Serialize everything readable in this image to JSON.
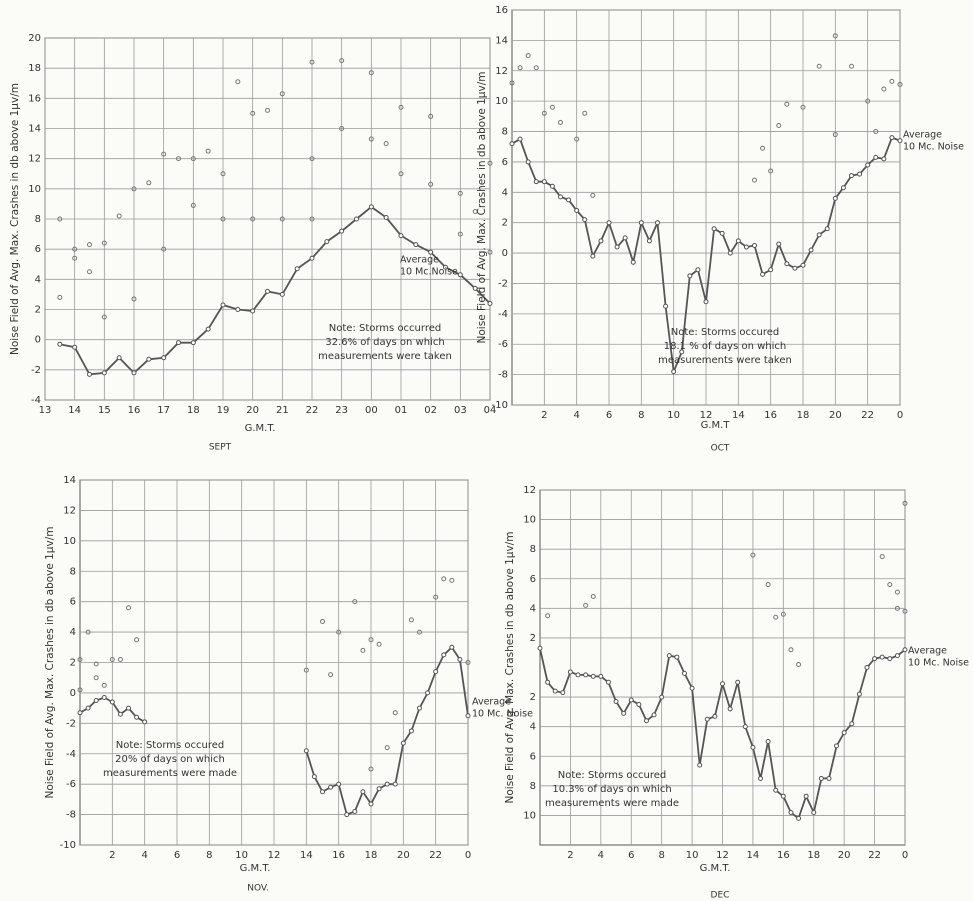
{
  "chart_data": [
    {
      "type": "line",
      "title": "SEPT",
      "xlabel": "G.M.T.",
      "ylabel": "Noise Field of Avg. Max. Crashes in db above 1μv/m",
      "note": [
        "Note: Storms occurred",
        "32.6% of days on which",
        "measurements were taken"
      ],
      "average_label": [
        "Average",
        "10 Mc.Noise"
      ],
      "xlim": [
        13,
        28
      ],
      "xticks": [
        13,
        14,
        15,
        16,
        17,
        18,
        19,
        20,
        21,
        22,
        23,
        {
          "value": 24,
          "label": "00"
        },
        {
          "value": 25,
          "label": "01"
        },
        {
          "value": 26,
          "label": "02"
        },
        {
          "value": 27,
          "label": "03"
        },
        {
          "value": 28,
          "label": "04"
        }
      ],
      "ylim": [
        -4,
        20
      ],
      "yticks": [
        -4,
        -2,
        0,
        2,
        4,
        6,
        8,
        10,
        12,
        14,
        16,
        18,
        20
      ],
      "grid": true,
      "series": [
        {
          "style": "line",
          "color": "#555555",
          "x": [
            13.5,
            14,
            14.5,
            15,
            15.5,
            16,
            16.5,
            17,
            17.5,
            18,
            18.5,
            19,
            19.5,
            20,
            20.5,
            21,
            21.5,
            22,
            22.5,
            23,
            23.5,
            24,
            24.5,
            25,
            25.5,
            26,
            26.5,
            27,
            27.5,
            28
          ],
          "values": [
            -0.3,
            -0.5,
            -2.3,
            -2.2,
            -1.2,
            -2.2,
            -1.3,
            -1.2,
            -0.2,
            -0.2,
            0.7,
            2.3,
            2.0,
            1.9,
            3.2,
            3.0,
            4.7,
            5.4,
            6.5,
            7.2,
            8.0,
            8.8,
            8.1,
            6.9,
            6.3,
            5.8,
            4.8,
            4.3,
            3.4,
            2.4
          ]
        },
        {
          "style": "points",
          "color": "#777777",
          "x": [
            13.5,
            13.5,
            14,
            14,
            14.5,
            14.5,
            15,
            15,
            15.5,
            16,
            16,
            16.5,
            17,
            17,
            17.5,
            18,
            18,
            18.5,
            19,
            19,
            19.5,
            20,
            20,
            20.5,
            21,
            21,
            22,
            22,
            22,
            23,
            23,
            24,
            24,
            24.5,
            25,
            25,
            26,
            26,
            27,
            27,
            27.5,
            28,
            28
          ],
          "values": [
            8,
            2.8,
            6,
            5.4,
            6.3,
            4.5,
            6.4,
            1.5,
            8.2,
            10,
            2.7,
            10.4,
            12.3,
            6,
            12,
            12,
            8.9,
            12.5,
            11,
            8,
            17.1,
            15,
            8,
            15.2,
            16.3,
            8,
            18.4,
            12,
            8,
            18.5,
            14,
            17.7,
            13.3,
            13,
            15.4,
            11,
            14.8,
            10.3,
            9.7,
            7,
            8.5,
            11.7,
            5.8
          ]
        }
      ]
    },
    {
      "type": "line",
      "title": "OCT",
      "xlabel": "G.M.T",
      "ylabel": "Noise Field of Avg. Max. Crashes in db above 1μv/m",
      "note": [
        "Note: Storms occured",
        "18.1 % of days on which",
        "measurements were taken"
      ],
      "average_label": [
        "Average",
        "10 Mc. Noise"
      ],
      "xlim": [
        0,
        24
      ],
      "xticks": [
        2,
        4,
        6,
        8,
        10,
        12,
        14,
        16,
        18,
        20,
        22,
        {
          "value": 24,
          "label": "0"
        }
      ],
      "ylim": [
        -10,
        16
      ],
      "yticks": [
        -10,
        -8,
        -6,
        -4,
        -2,
        0,
        2,
        4,
        6,
        8,
        10,
        12,
        14,
        16
      ],
      "grid": true,
      "series": [
        {
          "style": "line",
          "color": "#555555",
          "x": [
            0,
            0.5,
            1,
            1.5,
            2,
            2.5,
            3,
            3.5,
            4,
            4.5,
            5,
            5.5,
            6,
            6.5,
            7,
            7.5,
            8,
            8.5,
            9,
            9.5,
            10,
            10.5,
            11,
            11.5,
            12,
            12.5,
            13,
            13.5,
            14,
            14.5,
            15,
            15.5,
            16,
            16.5,
            17,
            17.5,
            18,
            18.5,
            19,
            19.5,
            20,
            20.5,
            21,
            21.5,
            22,
            22.5,
            23,
            23.5,
            24
          ],
          "values": [
            7.2,
            7.5,
            6.0,
            4.7,
            4.7,
            4.4,
            3.7,
            3.5,
            2.8,
            2.2,
            -0.2,
            0.8,
            2.0,
            0.4,
            1.0,
            -0.6,
            2.0,
            0.8,
            2.0,
            -3.5,
            -7.8,
            -6.5,
            -1.5,
            -1.1,
            -3.2,
            1.6,
            1.3,
            0,
            0.8,
            0.4,
            0.5,
            -1.4,
            -1.1,
            0.6,
            -0.7,
            -1.0,
            -0.8,
            0.2,
            1.2,
            1.6,
            3.6,
            4.3,
            5.1,
            5.2,
            5.8,
            6.3,
            6.2,
            7.6,
            7.4
          ]
        },
        {
          "style": "points",
          "color": "#777777",
          "x": [
            0,
            0.5,
            1,
            1.5,
            2,
            2.5,
            3,
            4,
            4.5,
            5,
            15,
            15.5,
            16,
            16.5,
            17,
            18,
            19,
            20,
            20,
            21,
            22,
            22.5,
            23,
            23.5,
            24
          ],
          "values": [
            11.2,
            12.2,
            13,
            12.2,
            9.2,
            9.6,
            8.6,
            7.5,
            9.2,
            3.8,
            4.8,
            6.9,
            5.4,
            8.4,
            9.8,
            9.6,
            12.3,
            14.3,
            7.8,
            12.3,
            10,
            8,
            10.8,
            11.3,
            11.1
          ]
        }
      ]
    },
    {
      "type": "line",
      "title": "NOV.",
      "xlabel": "G.M.T.",
      "ylabel": "Noise Field of Avg. Max. Crashes in db above 1μv/m",
      "note": [
        "Note: Storms occured",
        "20% of days on which",
        "measurements were made"
      ],
      "average_label": [
        "Average",
        "10 Mc. Noise"
      ],
      "xlim": [
        0,
        24
      ],
      "xticks": [
        2,
        4,
        6,
        8,
        10,
        12,
        14,
        16,
        18,
        20,
        22,
        {
          "value": 24,
          "label": "0"
        }
      ],
      "ylim": [
        -10,
        14
      ],
      "yticks": [
        -10,
        -8,
        -6,
        -4,
        -2,
        0,
        2,
        4,
        6,
        8,
        10,
        12,
        14
      ],
      "grid": true,
      "series": [
        {
          "style": "line",
          "color": "#555555",
          "x": [
            0,
            0.5,
            1,
            1.5,
            2,
            2.5,
            3,
            3.5,
            4,
            9,
            14,
            14.5,
            15,
            15.5,
            16,
            16.5,
            17,
            17.5,
            18,
            18.5,
            19,
            19.5,
            20,
            20.5,
            21,
            21.5,
            22,
            22.5,
            23,
            23.5,
            24
          ],
          "values": [
            -1.3,
            -1.0,
            -0.5,
            -0.3,
            -0.6,
            -1.4,
            -1.0,
            -1.6,
            -1.9,
            null,
            -3.8,
            -5.5,
            -6.5,
            -6.2,
            -6.0,
            -8.0,
            -7.8,
            -6.5,
            -7.3,
            -6.3,
            -6.0,
            -6.0,
            -3.3,
            -2.5,
            -1.0,
            0,
            1.4,
            2.5,
            3.0,
            2.2,
            -1.5
          ]
        },
        {
          "style": "points",
          "color": "#777777",
          "x": [
            0,
            0,
            0.5,
            1,
            1,
            1.5,
            2,
            2.5,
            3,
            3.5,
            14,
            15,
            15.5,
            16,
            17,
            17.5,
            18,
            18,
            18.5,
            19,
            19.5,
            20.5,
            21,
            22,
            22.5,
            23,
            24
          ],
          "values": [
            0.2,
            2.2,
            4,
            1.9,
            1,
            0.5,
            2.2,
            2.2,
            5.6,
            3.5,
            1.5,
            4.7,
            1.2,
            4,
            6,
            2.8,
            3.5,
            -5,
            3.2,
            -3.6,
            -1.3,
            4.8,
            4,
            6.3,
            7.5,
            7.4,
            2
          ]
        }
      ]
    },
    {
      "type": "line",
      "title": "DEC",
      "xlabel": "G.M.T.",
      "ylabel": "Noise Field of Avg. Max. Crashes in db above 1μv/m",
      "note": [
        "Note: Storms occured",
        "10.3% of days on which",
        "measurements were made"
      ],
      "average_label": [
        "Average",
        "10 Mc. Noise"
      ],
      "xlim": [
        0,
        24
      ],
      "xticks": [
        2,
        4,
        6,
        8,
        10,
        12,
        14,
        16,
        18,
        20,
        22,
        {
          "value": 24,
          "label": "0"
        }
      ],
      "ylim": [
        -12,
        12
      ],
      "yticks": [
        {
          "value": -10,
          "label": "10"
        },
        {
          "value": -8,
          "label": "8"
        },
        {
          "value": -6,
          "label": "6"
        },
        {
          "value": -4,
          "label": "4"
        },
        {
          "value": -2,
          "label": "2"
        },
        2,
        4,
        6,
        8,
        10,
        12
      ],
      "grid": true,
      "series": [
        {
          "style": "line",
          "color": "#555555",
          "x": [
            0,
            0.5,
            1,
            1.5,
            2,
            2.5,
            3,
            3.5,
            4,
            4.5,
            5,
            5.5,
            6,
            6.5,
            7,
            7.5,
            8,
            8.5,
            9,
            9.5,
            10,
            10.5,
            11,
            11.5,
            12,
            12.5,
            13,
            13.5,
            14,
            14.5,
            15,
            15.5,
            16,
            16.5,
            17,
            17.5,
            18,
            18.5,
            19,
            19.5,
            20,
            20.5,
            21,
            21.5,
            22,
            22.5,
            23,
            23.5,
            24
          ],
          "values": [
            1.3,
            -1.0,
            -1.6,
            -1.7,
            -0.3,
            -0.5,
            -0.5,
            -0.6,
            -0.6,
            -1.0,
            -2.3,
            -3.1,
            -2.2,
            -2.5,
            -3.6,
            -3.2,
            -2.0,
            0.8,
            0.7,
            -0.4,
            -1.4,
            -6.6,
            -3.5,
            -3.3,
            -1.1,
            -2.8,
            -1.0,
            -4.0,
            -5.4,
            -7.5,
            -5.0,
            -8.3,
            -8.7,
            -9.8,
            -10.2,
            -8.7,
            -9.8,
            -7.5,
            -7.5,
            -5.3,
            -4.4,
            -3.8,
            -1.8,
            0,
            0.6,
            0.7,
            0.6,
            0.8,
            1.2
          ]
        },
        {
          "style": "points",
          "color": "#777777",
          "x": [
            0.5,
            3,
            3.5,
            14,
            15,
            15.5,
            16,
            16.5,
            17,
            22.5,
            23,
            23.5,
            23.5,
            24,
            24
          ],
          "values": [
            3.5,
            4.2,
            4.8,
            7.6,
            5.6,
            3.4,
            3.6,
            1.2,
            0.2,
            7.5,
            5.6,
            4,
            5.1,
            3.8,
            11.1
          ]
        }
      ]
    }
  ]
}
